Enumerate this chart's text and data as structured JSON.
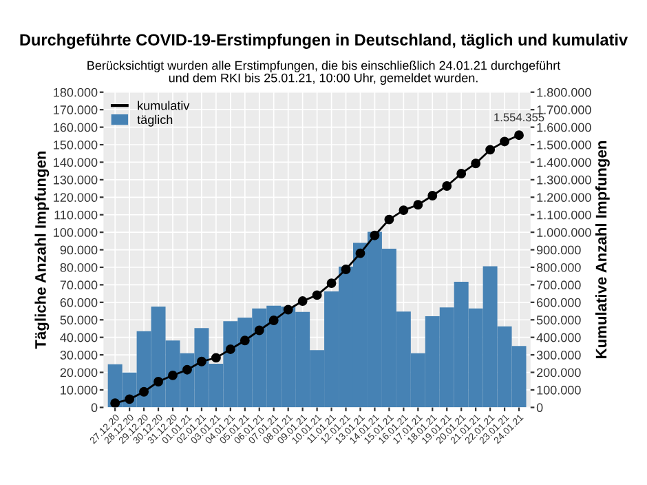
{
  "chart_data": {
    "type": "bar",
    "title": "Durchgeführte COVID-19-Erstimpfungen in Deutschland, täglich und kumulativ",
    "subtitle": "Berücksichtigt wurden alle Erstimpfungen, die bis einschließlich 24.01.21 durchgeführt\nund dem RKI bis 25.01.21, 10:00 Uhr, gemeldet wurden.",
    "ylabel": "Tägliche Anzahl Impfungen",
    "y2label": "Kumulative Anzahl Impfungen",
    "categories": [
      "27.12.20",
      "28.12.20",
      "29.12.20",
      "30.12.20",
      "31.12.20",
      "01.01.21",
      "02.01.21",
      "03.01.21",
      "04.01.21",
      "05.01.21",
      "06.01.21",
      "07.01.21",
      "08.01.21",
      "09.01.21",
      "10.01.21",
      "11.01.21",
      "12.01.21",
      "13.01.21",
      "14.01.21",
      "15.01.21",
      "16.01.21",
      "17.01.21",
      "18.01.21",
      "19.01.21",
      "20.01.21",
      "21.01.21",
      "22.01.21",
      "23.01.21",
      "24.01.21"
    ],
    "series": [
      {
        "name": "kumulativ",
        "type": "line",
        "axis": "y2",
        "color": "#000000",
        "marker": "circle",
        "value_labels": [
          null,
          null,
          null,
          null,
          null,
          null,
          null,
          null,
          null,
          null,
          null,
          null,
          null,
          null,
          null,
          null,
          null,
          null,
          null,
          null,
          null,
          null,
          null,
          null,
          null,
          null,
          null,
          null,
          "1.554.355"
        ],
        "values": [
          24000,
          47000,
          89000,
          147000,
          183000,
          215000,
          262000,
          283000,
          332000,
          382000,
          440000,
          497000,
          558000,
          607000,
          641000,
          709000,
          788000,
          880000,
          982000,
          1073000,
          1126000,
          1157000,
          1209000,
          1264000,
          1335000,
          1393000,
          1471000,
          1518000,
          1554355
        ]
      },
      {
        "name": "täglich",
        "color": "#4682b4",
        "values": [
          24600,
          19900,
          43500,
          57600,
          38200,
          30900,
          45300,
          24900,
          49200,
          51300,
          56500,
          58100,
          57600,
          54500,
          32700,
          66200,
          80400,
          94000,
          100300,
          90600,
          54700,
          30900,
          52100,
          57100,
          71700,
          56500,
          80600,
          46300,
          35100
        ]
      }
    ],
    "ylim": [
      0,
      180000
    ],
    "yticks": [
      {
        "value": 0,
        "label": "0"
      },
      {
        "value": 10000,
        "label": "10.000"
      },
      {
        "value": 20000,
        "label": "20.000"
      },
      {
        "value": 30000,
        "label": "30.000"
      },
      {
        "value": 40000,
        "label": "40.000"
      },
      {
        "value": 50000,
        "label": "50.000"
      },
      {
        "value": 60000,
        "label": "60.000"
      },
      {
        "value": 70000,
        "label": "70.000"
      },
      {
        "value": 80000,
        "label": "80.000"
      },
      {
        "value": 90000,
        "label": "90.000"
      },
      {
        "value": 100000,
        "label": "100.000"
      },
      {
        "value": 110000,
        "label": "110.000"
      },
      {
        "value": 120000,
        "label": "120.000"
      },
      {
        "value": 130000,
        "label": "130.000"
      },
      {
        "value": 140000,
        "label": "140.000"
      },
      {
        "value": 150000,
        "label": "150.000"
      },
      {
        "value": 160000,
        "label": "160.000"
      },
      {
        "value": 170000,
        "label": "170.000"
      },
      {
        "value": 180000,
        "label": "180.000"
      }
    ],
    "y2lim": [
      0,
      1800000
    ],
    "y2ticks": [
      {
        "value": 0,
        "label": "0"
      },
      {
        "value": 100000,
        "label": "100.000"
      },
      {
        "value": 200000,
        "label": "200.000"
      },
      {
        "value": 300000,
        "label": "300.000"
      },
      {
        "value": 400000,
        "label": "400.000"
      },
      {
        "value": 500000,
        "label": "500.000"
      },
      {
        "value": 600000,
        "label": "600.000"
      },
      {
        "value": 700000,
        "label": "700.000"
      },
      {
        "value": 800000,
        "label": "800.000"
      },
      {
        "value": 900000,
        "label": "900.000"
      },
      {
        "value": 1000000,
        "label": "1.000.000"
      },
      {
        "value": 1100000,
        "label": "1.100.000"
      },
      {
        "value": 1200000,
        "label": "1.200.000"
      },
      {
        "value": 1300000,
        "label": "1.300.000"
      },
      {
        "value": 1400000,
        "label": "1.400.000"
      },
      {
        "value": 1500000,
        "label": "1.500.000"
      },
      {
        "value": 1600000,
        "label": "1.600.000"
      },
      {
        "value": 1700000,
        "label": "1.700.000"
      },
      {
        "value": 1800000,
        "label": "1.800.000"
      }
    ],
    "grid": true,
    "legend": "top left"
  }
}
